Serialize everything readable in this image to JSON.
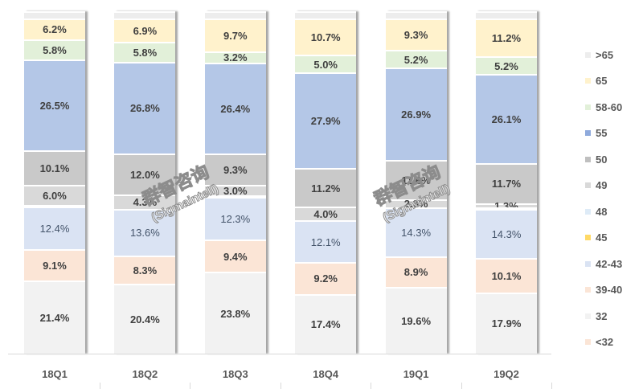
{
  "chart_data": {
    "type": "bar",
    "stacked": true,
    "percent_stacked": true,
    "title": "",
    "xlabel": "",
    "ylabel": "",
    "ylim": [
      0,
      100
    ],
    "grid": false,
    "legend_position": "right",
    "categories": [
      "18Q1",
      "18Q2",
      "18Q3",
      "18Q4",
      "19Q1",
      "19Q2"
    ],
    "series": [
      {
        "name": "32",
        "color": "#f2f2f2",
        "values": [
          21.4,
          20.4,
          23.8,
          17.4,
          19.6,
          17.9
        ],
        "labels": [
          "21.4%",
          "20.4%",
          "23.8%",
          "17.4%",
          "19.6%",
          "17.9%"
        ]
      },
      {
        "name": "<32",
        "color": "#fbe5d6",
        "values": [
          0,
          0,
          0,
          0,
          0,
          0
        ],
        "labels": [
          "",
          "",
          "",
          "",
          "",
          ""
        ]
      },
      {
        "name": "39-40",
        "color": "#fbe5d6",
        "values": [
          9.1,
          8.3,
          9.4,
          9.2,
          8.9,
          10.1
        ],
        "labels": [
          "9.1%",
          "8.3%",
          "9.4%",
          "9.2%",
          "8.9%",
          "10.1%"
        ]
      },
      {
        "name": "42-43",
        "color": "#dae3f3",
        "values": [
          12.4,
          13.6,
          12.3,
          12.1,
          14.3,
          14.3
        ],
        "labels": [
          "12.4%",
          "13.6%",
          "12.3%",
          "12.1%",
          "14.3%",
          "14.3%"
        ]
      },
      {
        "name": "45",
        "color": "#ffe699",
        "values": [
          0,
          0,
          0.5,
          0,
          0,
          0
        ],
        "labels": [
          "",
          "",
          "",
          "",
          "",
          ""
        ]
      },
      {
        "name": "48",
        "color": "#deebf7",
        "values": [
          0.5,
          0,
          0,
          0,
          0,
          0.5
        ],
        "labels": [
          "",
          "",
          "",
          "",
          "",
          ""
        ]
      },
      {
        "name": "49",
        "color": "#d9d9d9",
        "values": [
          6.0,
          4.3,
          3.0,
          4.0,
          2.3,
          1.3
        ],
        "labels": [
          "6.0%",
          "4.3%",
          "3.0%",
          "4.0%",
          "2.3%",
          "1.3%"
        ]
      },
      {
        "name": "50",
        "color": "#c9c9c9",
        "values": [
          10.1,
          12.0,
          9.3,
          11.2,
          11.6,
          11.7
        ],
        "labels": [
          "10.1%",
          "12.0%",
          "9.3%",
          "11.2%",
          "11.6%",
          "11.7%"
        ]
      },
      {
        "name": "55",
        "color": "#b4c7e7",
        "values": [
          26.5,
          26.8,
          26.4,
          27.9,
          26.9,
          26.1
        ],
        "labels": [
          "26.5%",
          "26.8%",
          "26.4%",
          "27.9%",
          "26.9%",
          "26.1%"
        ]
      },
      {
        "name": "58-60",
        "color": "#e2f0d9",
        "values": [
          5.8,
          5.8,
          3.2,
          5.0,
          5.2,
          5.2
        ],
        "labels": [
          "5.8%",
          "5.8%",
          "3.2%",
          "5.0%",
          "5.2%",
          "5.2%"
        ]
      },
      {
        "name": "65",
        "color": "#fff2cc",
        "values": [
          6.2,
          6.9,
          9.7,
          10.7,
          9.3,
          11.2
        ],
        "labels": [
          "6.2%",
          "6.9%",
          "9.7%",
          "10.7%",
          "9.3%",
          "11.2%"
        ]
      },
      {
        "name": ">65",
        "color": "#ededed",
        "values": [
          2.0,
          2.0,
          2.0,
          2.0,
          2.0,
          2.0
        ],
        "labels": [
          "",
          "",
          "",
          "",
          "",
          ""
        ]
      }
    ],
    "legend": [
      ">65",
      "65",
      "58-60",
      "55",
      "50",
      "49",
      "48",
      "45",
      "42-43",
      "39-40",
      "32",
      "<32"
    ],
    "legend_colors": {
      ">65": "#ededed",
      "65": "#fff2cc",
      "58-60": "#e2f0d9",
      "55": "#b4c7e7",
      "50": "#c9c9c9",
      "49": "#d9d9d9",
      "48": "#deebf7",
      "45": "#ffe699",
      "42-43": "#dae3f3",
      "39-40": "#fbe5d6",
      "32": "#f2f2f2",
      "<32": "#fbe5d6"
    },
    "light_label_series": [
      "42-43"
    ]
  },
  "watermark": {
    "text": "群智咨询",
    "subtext": "(Sigmaintell)"
  }
}
